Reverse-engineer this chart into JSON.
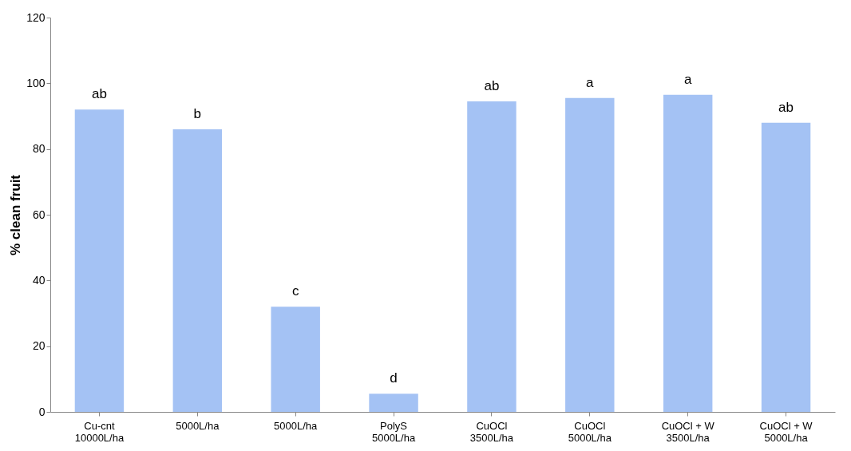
{
  "chart_data": {
    "type": "bar",
    "ylabel": "% clean fruit",
    "categories": [
      "Cu-cnt\n10000L/ha",
      "5000L/ha",
      "5000L/ha",
      "PolyS\n5000L/ha",
      "CuOCl\n3500L/ha",
      "CuOCl\n5000L/ha",
      "CuOCl + W\n3500L/ha",
      "CuOCl + W\n5000L/ha"
    ],
    "values": [
      92,
      86,
      32,
      5.5,
      94.5,
      95.5,
      96.5,
      88
    ],
    "value_labels": [
      "ab",
      "b",
      "c",
      "d",
      "ab",
      "a",
      "a",
      "ab"
    ],
    "color": "#a4c2f4",
    "ylim": [
      0,
      120
    ],
    "yticks": [
      0,
      20,
      40,
      60,
      80,
      100,
      120
    ],
    "grid": false
  }
}
